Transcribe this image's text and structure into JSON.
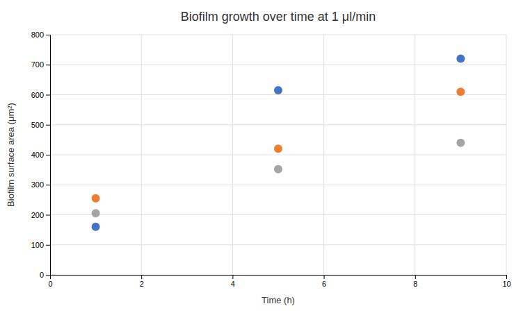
{
  "chart_data": {
    "type": "scatter",
    "title": "Biofilm growth over time at 1 μl/min",
    "xlabel": "Time (h)",
    "ylabel": "Biofilm surface area (μm²)",
    "x": [
      1,
      5,
      9
    ],
    "series": [
      {
        "color": "#4472C4",
        "values": [
          160,
          615,
          720
        ]
      },
      {
        "color": "#ED7D31",
        "values": [
          255,
          420,
          610
        ]
      },
      {
        "color": "#A5A5A5",
        "values": [
          205,
          352,
          440
        ]
      }
    ],
    "xlim": [
      0,
      10
    ],
    "ylim": [
      0,
      800
    ],
    "xticks": [
      0,
      2,
      4,
      6,
      8,
      10
    ],
    "yticks": [
      0,
      100,
      200,
      300,
      400,
      500,
      600,
      700,
      800
    ],
    "grid": true
  }
}
